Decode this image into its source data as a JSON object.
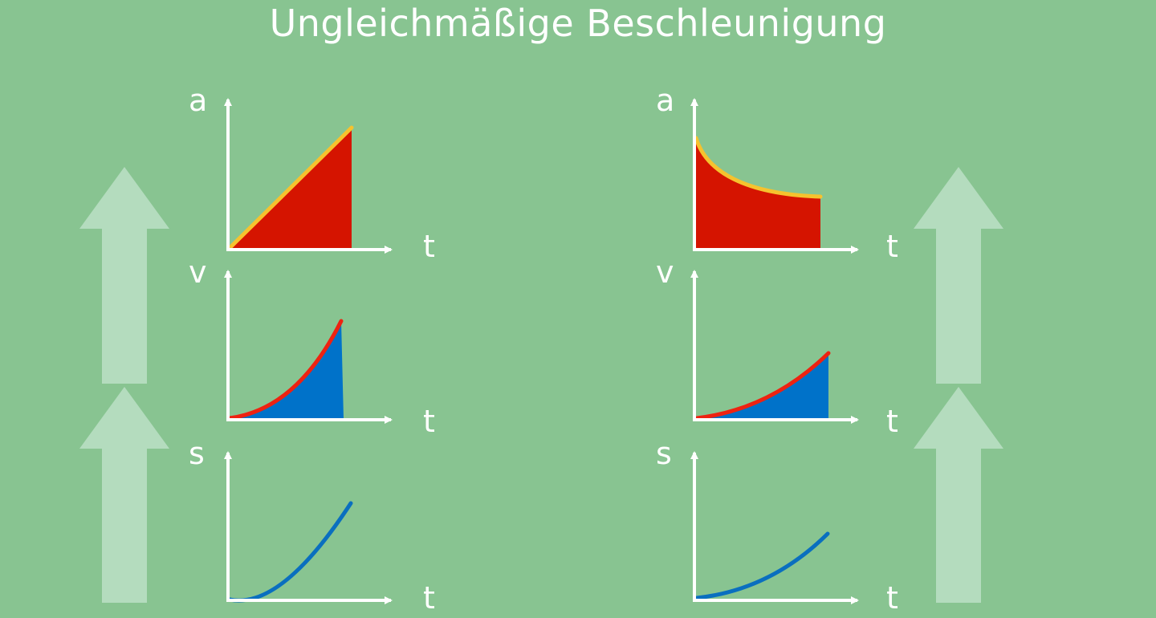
{
  "title": "Ungleichmäßige Beschleunigung",
  "colors": {
    "background": "#88c491",
    "axis": "#ffffff",
    "acceleration_fill": "#d51400",
    "acceleration_line": "#f6c22e",
    "velocity_fill": "#0072c9",
    "velocity_line": "#ee2211",
    "distance_line": "#0a6fbf",
    "arrow": "#b4dcbe"
  },
  "left": {
    "a_axis_label": "a",
    "v_axis_label": "v",
    "s_axis_label": "s",
    "t_label_a": "t",
    "t_label_v": "t",
    "t_label_s": "t"
  },
  "right": {
    "a_axis_label": "a",
    "v_axis_label": "v",
    "s_axis_label": "s",
    "t_label_a": "t",
    "t_label_v": "t",
    "t_label_s": "t"
  }
}
